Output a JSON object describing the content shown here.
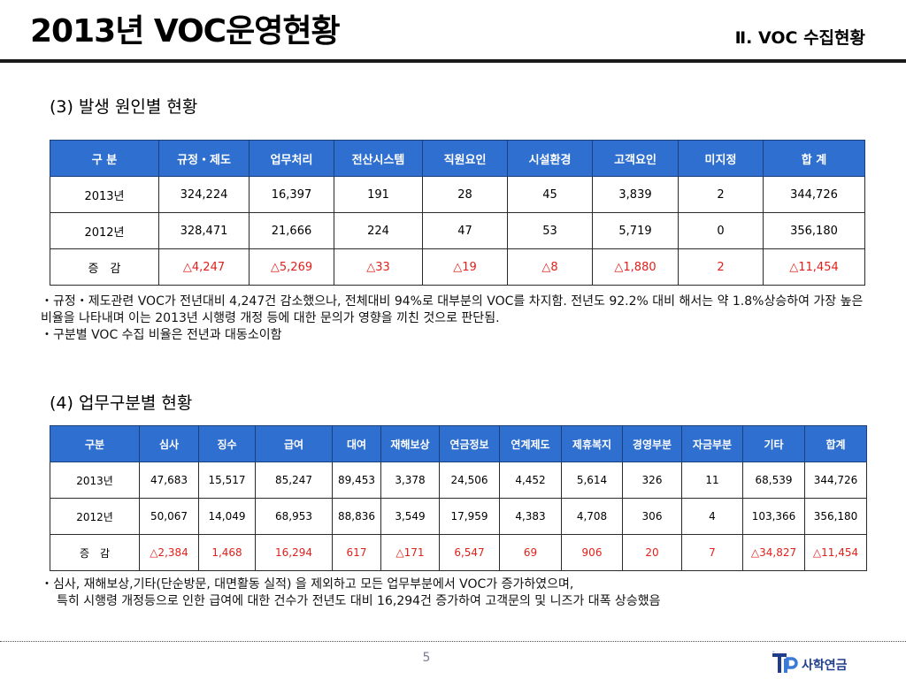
{
  "header": {
    "title": "2013년 VOC운영현황",
    "section": "Ⅱ. VOC 수집현황"
  },
  "section3": {
    "heading": "(3) 발생 원인별 현황",
    "columns": [
      "구 분",
      "규정・제도",
      "업무처리",
      "전산시스템",
      "직원요인",
      "시설환경",
      "고객요인",
      "미지정",
      "합 계"
    ],
    "rows": [
      [
        "2013년",
        "324,224",
        "16,397",
        "191",
        "28",
        "45",
        "3,839",
        "2",
        "344,726"
      ],
      [
        "2012년",
        "328,471",
        "21,666",
        "224",
        "47",
        "53",
        "5,719",
        "0",
        "356,180"
      ],
      [
        "증　감",
        "△4,247",
        "△5,269",
        "△33",
        "△19",
        "△8",
        "△1,880",
        "2",
        "△11,454"
      ]
    ],
    "notes": [
      "・규정・제도관련 VOC가 전년대비 4,247건 감소했으나, 전체대비 94%로 대부분의 VOC를 차지함. 전년도 92.2% 대비 해서는 약 1.8%상승하여 가장 높은 비율을 나타내며 이는 2013년 시행령 개정 등에 대한 문의가 영향을 끼친 것으로 판단됨.",
      "・구분별 VOC 수집 비율은 전년과 대동소이함"
    ]
  },
  "section4": {
    "heading": "(4) 업무구분별 현황",
    "columns": [
      "구분",
      "심사",
      "징수",
      "급여",
      "대여",
      "재해보상",
      "연금정보",
      "연계제도",
      "제휴복지",
      "경영부분",
      "자금부분",
      "기타",
      "합계"
    ],
    "rows": [
      [
        "2013년",
        "47,683",
        "15,517",
        "85,247",
        "89,453",
        "3,378",
        "24,506",
        "4,452",
        "5,614",
        "326",
        "11",
        "68,539",
        "344,726"
      ],
      [
        "2012년",
        "50,067",
        "14,049",
        "68,953",
        "88,836",
        "3,549",
        "17,959",
        "4,383",
        "4,708",
        "306",
        "4",
        "103,366",
        "356,180"
      ],
      [
        "증　감",
        "△2,384",
        "1,468",
        "16,294",
        "617",
        "△171",
        "6,547",
        "69",
        "906",
        "20",
        "7",
        "△34,827",
        "△11,454"
      ]
    ],
    "notes": [
      "・심사, 재해보상,기타(단순방문, 대면활동 실적) 을 제외하고 모든 업무부분에서 VOC가 증가하였으며,",
      "특히 시행령 개정등으로 인한 급여에 대한 건수가  전년도 대비 16,294건 증가하여 고객문의 및 니즈가 대폭 상승했음"
    ]
  },
  "footer": {
    "page_number": "5",
    "logo_text": "사학연금",
    "logo_mark": "TP"
  },
  "colors": {
    "header_blue": "#2f6fcf",
    "change_red": "#e0201b",
    "logo_blue": "#1f3d8a"
  }
}
